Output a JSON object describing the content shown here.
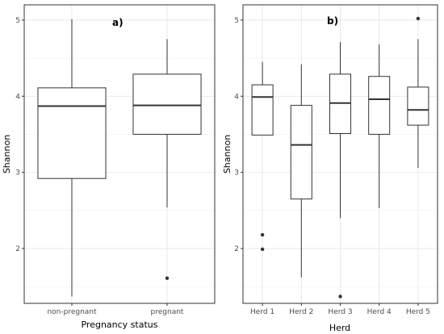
{
  "chart_data": [
    {
      "type": "box",
      "panel_label": "a)",
      "xlabel": "Pregnancy status",
      "ylabel": "Shannon",
      "ylim": [
        1.28,
        5.2
      ],
      "yticks": [
        "2",
        "3",
        "4",
        "5"
      ],
      "grid": true,
      "categories": [
        "non-pregnant",
        "pregnant"
      ],
      "boxes": [
        {
          "category": "non-pregnant",
          "min": 1.37,
          "q1": 2.92,
          "median": 3.87,
          "q3": 4.11,
          "max": 5.01,
          "outliers": []
        },
        {
          "category": "pregnant",
          "min": 2.54,
          "q1": 3.5,
          "median": 3.88,
          "q3": 4.29,
          "max": 4.75,
          "outliers": [
            1.61
          ]
        }
      ]
    },
    {
      "type": "box",
      "panel_label": "b)",
      "xlabel": "Herd",
      "ylabel": "Shannon",
      "ylim": [
        1.28,
        5.2
      ],
      "yticks": [
        "2",
        "3",
        "4",
        "5"
      ],
      "grid": true,
      "categories": [
        "Herd 1",
        "Herd 2",
        "Herd 3",
        "Herd 4",
        "Herd 5"
      ],
      "boxes": [
        {
          "category": "Herd 1",
          "min": 3.49,
          "q1": 3.49,
          "median": 3.99,
          "q3": 4.15,
          "max": 4.45,
          "outliers": [
            2.18,
            1.99
          ]
        },
        {
          "category": "Herd 2",
          "min": 1.62,
          "q1": 2.65,
          "median": 3.36,
          "q3": 3.88,
          "max": 4.42,
          "outliers": []
        },
        {
          "category": "Herd 3",
          "min": 2.4,
          "q1": 3.51,
          "median": 3.91,
          "q3": 4.29,
          "max": 4.71,
          "outliers": [
            1.37
          ]
        },
        {
          "category": "Herd 4",
          "min": 2.53,
          "q1": 3.5,
          "median": 3.96,
          "q3": 4.26,
          "max": 4.68,
          "outliers": []
        },
        {
          "category": "Herd 5",
          "min": 3.06,
          "q1": 3.62,
          "median": 3.82,
          "q3": 4.12,
          "max": 4.75,
          "outliers": [
            5.02
          ]
        }
      ]
    }
  ]
}
